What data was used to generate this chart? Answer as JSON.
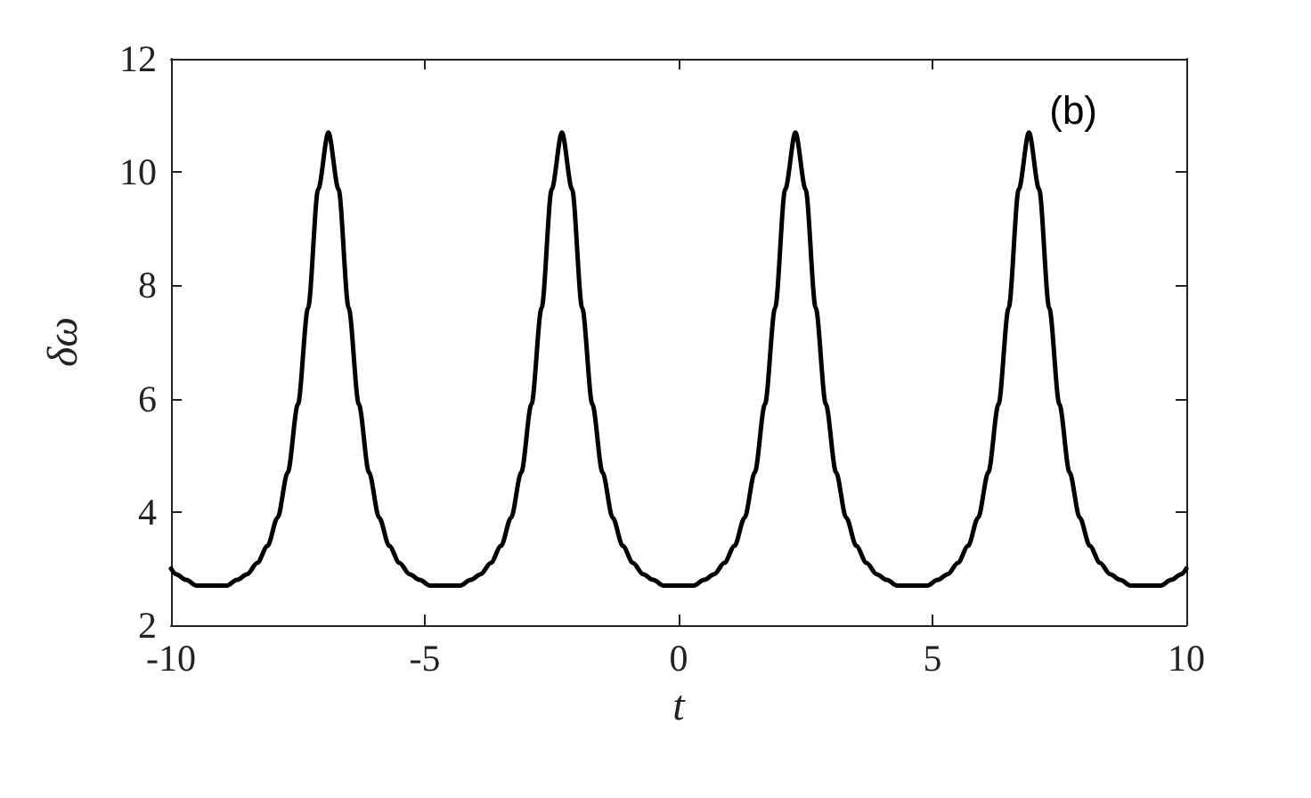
{
  "chart_data": {
    "type": "line",
    "xlabel": "t",
    "ylabel": "δω",
    "annotations": [
      "(b)"
    ],
    "x": [
      -10,
      -9.9,
      -9.7,
      -9.5,
      -9.3,
      -9.1,
      -8.9,
      -8.7,
      -8.5,
      -8.3,
      -8.1,
      -7.9,
      -7.7,
      -7.5,
      -7.3,
      -7.1,
      -6.9,
      -6.7,
      -6.5,
      -6.3,
      -6.1,
      -5.9,
      -5.7,
      -5.5,
      -5.3,
      -5.1,
      -4.9,
      -4.7,
      -4.5,
      -4.3,
      -4.1,
      -3.9,
      -3.7,
      -3.5,
      -3.3,
      -3.1,
      -2.9,
      -2.7,
      -2.5,
      -2.3,
      -2.1,
      -1.9,
      -1.7,
      -1.5,
      -1.3,
      -1.1,
      -0.9,
      -0.7,
      -0.5,
      -0.3,
      -0.1,
      0.1,
      0.3,
      0.5,
      0.7,
      0.9,
      1.1,
      1.3,
      1.5,
      1.7,
      1.9,
      2.1,
      2.3,
      2.5,
      2.7,
      2.9,
      3.1,
      3.3,
      3.5,
      3.7,
      3.9,
      4.1,
      4.3,
      4.5,
      4.7,
      4.9,
      5.1,
      5.3,
      5.5,
      5.7,
      5.9,
      6.1,
      6.3,
      6.5,
      6.7,
      6.9,
      7.1,
      7.3,
      7.5,
      7.7,
      7.9,
      8.1,
      8.3,
      8.5,
      8.7,
      8.9,
      9.1,
      9.3,
      9.5,
      9.7,
      9.9,
      10
    ],
    "series": [
      {
        "color": "#000000",
        "values": [
          3.0,
          2.9,
          2.8,
          2.7,
          2.7,
          2.7,
          2.7,
          2.8,
          2.9,
          3.1,
          3.4,
          3.9,
          4.7,
          5.9,
          7.6,
          9.7,
          10.7,
          9.7,
          7.6,
          5.9,
          4.7,
          3.9,
          3.4,
          3.1,
          2.9,
          2.8,
          2.7,
          2.7,
          2.7,
          2.7,
          2.8,
          2.9,
          3.1,
          3.4,
          3.9,
          4.7,
          5.9,
          7.6,
          9.7,
          10.7,
          9.7,
          7.6,
          5.9,
          4.7,
          3.9,
          3.4,
          3.1,
          2.9,
          2.8,
          2.7,
          2.7,
          2.7,
          2.7,
          2.8,
          2.9,
          3.1,
          3.4,
          3.9,
          4.7,
          5.9,
          7.6,
          9.7,
          10.7,
          9.7,
          7.6,
          5.9,
          4.7,
          3.9,
          3.4,
          3.1,
          2.9,
          2.8,
          2.7,
          2.7,
          2.7,
          2.7,
          2.8,
          2.9,
          3.1,
          3.4,
          3.9,
          4.7,
          5.9,
          7.6,
          9.7,
          10.7,
          9.7,
          7.6,
          5.9,
          4.7,
          3.9,
          3.4,
          3.1,
          2.9,
          2.8,
          2.7,
          2.7,
          2.7,
          2.7,
          2.8,
          2.9,
          3.0
        ]
      }
    ],
    "xlim": [
      -10,
      10
    ],
    "xticks": [
      -10,
      -5,
      0,
      5,
      10
    ],
    "ylim": [
      2,
      12
    ],
    "yticks": [
      2,
      4,
      6,
      8,
      10,
      12
    ],
    "grid": false,
    "marker": "none",
    "line_style": "solid"
  }
}
